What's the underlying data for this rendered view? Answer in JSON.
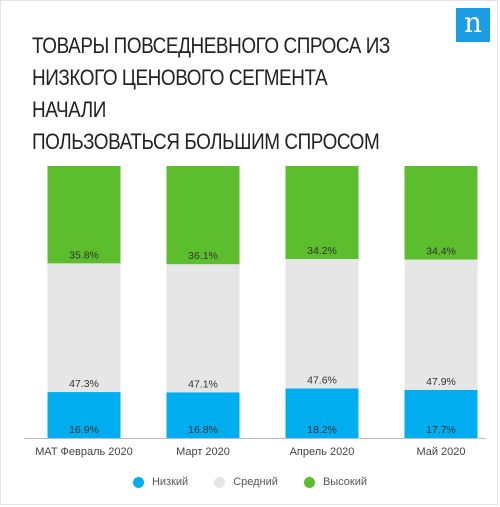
{
  "title": "ТОВАРЫ ПОВСЕДНЕВНОГО СПРОСА ИЗ\nНИЗКОГО ЦЕНОВОГО СЕГМЕНТА НАЧАЛИ\nПОЛЬЗОВАТЬСЯ БОЛЬШИМ СПРОСОМ",
  "logo_text": "n",
  "chart_data": {
    "type": "bar",
    "stacked": true,
    "normalized": true,
    "categories": [
      "MAT Февраль 2020",
      "Март 2020",
      "Апрель 2020",
      "Май 2020"
    ],
    "series": [
      {
        "name": "Низкий",
        "color": "#00aeef",
        "values": [
          16.9,
          16.8,
          18.2,
          17.7
        ],
        "labels": [
          "16.9%",
          "16.8%",
          "18.2%",
          "17.7%"
        ]
      },
      {
        "name": "Средний",
        "color": "#e6e6e6",
        "values": [
          47.3,
          47.1,
          47.6,
          47.9
        ],
        "labels": [
          "47.3%",
          "47.1%",
          "47.6%",
          "47.9%"
        ]
      },
      {
        "name": "Высокий",
        "color": "#5dbe2d",
        "values": [
          35.8,
          36.1,
          34.2,
          34.4
        ],
        "labels": [
          "35.8%",
          "36.1%",
          "34.2%",
          "34.4%"
        ]
      }
    ],
    "legend_position": "bottom",
    "grid": false
  }
}
